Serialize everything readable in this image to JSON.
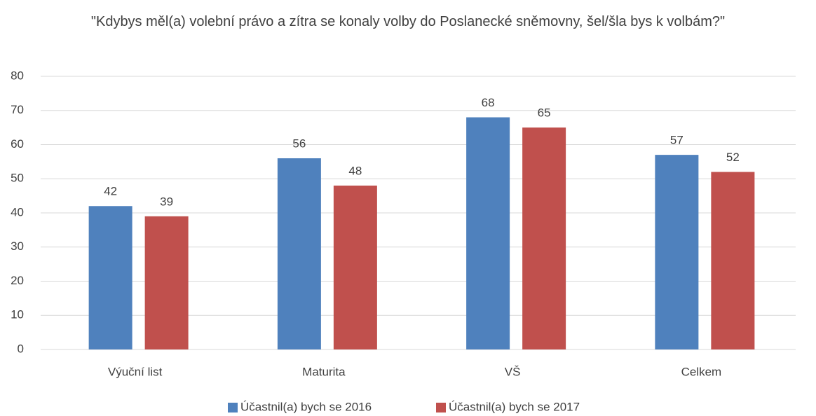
{
  "chart_data": {
    "type": "bar",
    "title": "\"Kdybys měl(a) volební právo a zítra se konaly volby do Poslanecké sněmovny, šel/šla bys k volbám?\"",
    "categories": [
      "Výuční list",
      "Maturita",
      "VŠ",
      "Celkem"
    ],
    "series": [
      {
        "name": "Účastnil(a) bych se 2016",
        "color": "#4f81bd",
        "values": [
          42,
          56,
          68,
          57
        ]
      },
      {
        "name": "Účastnil(a) bych se 2017",
        "color": "#c0504d",
        "values": [
          39,
          48,
          65,
          52
        ]
      }
    ],
    "ylim": [
      0,
      80
    ],
    "yticks": [
      0,
      10,
      20,
      30,
      40,
      50,
      60,
      70,
      80
    ],
    "grid": true,
    "legend": "bottom"
  }
}
